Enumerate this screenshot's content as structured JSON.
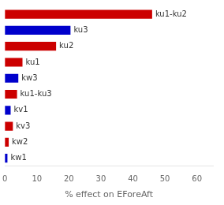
{
  "chart_data": {
    "type": "bar",
    "orientation": "horizontal",
    "categories": [
      "kw1",
      "kw2",
      "kv3",
      "kv1",
      "ku1-ku3",
      "kw3",
      "ku1",
      "ku2",
      "ku3",
      "ku1-ku2"
    ],
    "values": [
      0.8,
      1.2,
      2.5,
      1.8,
      3.8,
      4.2,
      5.5,
      16.0,
      20.5,
      46.0
    ],
    "colors": [
      "#0000cc",
      "#cc0000",
      "#cc0000",
      "#0000cc",
      "#cc0000",
      "#0000cc",
      "#cc0000",
      "#cc0000",
      "#0000cc",
      "#cc0000"
    ],
    "xlabel": "% effect on EForeAft",
    "xlim": [
      0,
      65
    ],
    "xticks": [
      0,
      10,
      20,
      30,
      40,
      50,
      60
    ],
    "tick_labels": "x",
    "grid": false
  }
}
